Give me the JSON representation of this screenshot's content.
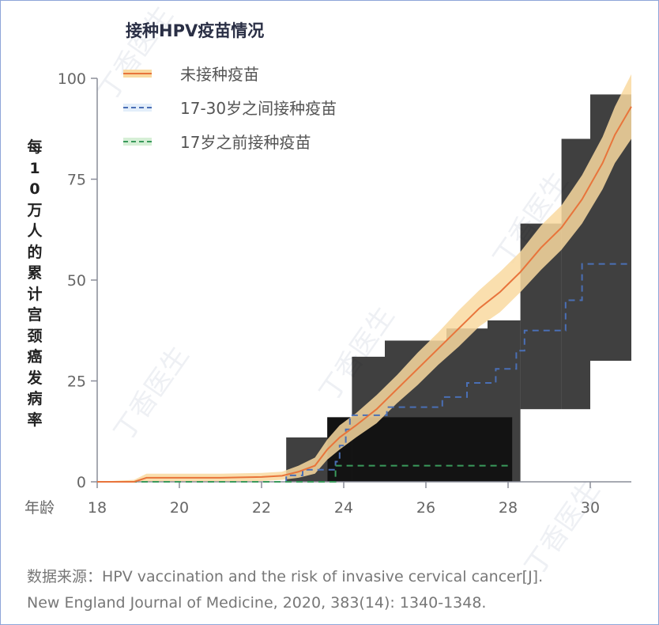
{
  "watermark": "丁香医生",
  "source": {
    "line1": "数据来源：HPV vaccination and the risk of invasive cervical cancer[J].",
    "line2": "New England Journal of Medicine, 2020, 383(14): 1340-1348."
  },
  "chart_data": {
    "type": "line",
    "title": "接种HPV疫苗情况",
    "ylabel": "每10万人的累计宫颈癌发病率",
    "xlabel": "年龄",
    "xlim": [
      18,
      31
    ],
    "ylim": [
      0,
      100
    ],
    "xticks": [
      18,
      20,
      22,
      24,
      26,
      28,
      30
    ],
    "yticks": [
      0,
      25,
      50,
      75,
      100
    ],
    "legend_position": "top-left",
    "colors": {
      "unvaccinated": "#e8743b",
      "band_unvaccinated": "#f9d9a0",
      "vacc_17_30": "#4a6fb5",
      "band_17_30": "#d6e8f8",
      "vacc_before_17": "#3a9a5c",
      "band_before_17": "#cfeccf"
    },
    "series": [
      {
        "name": "未接种疫苗",
        "style": "solid",
        "key": "unvaccinated",
        "x": [
          18,
          18.9,
          19.2,
          20,
          21,
          22,
          22.5,
          22.9,
          23.3,
          23.6,
          23.9,
          24.3,
          24.8,
          25.3,
          25.8,
          26.3,
          26.8,
          27.3,
          27.8,
          28.3,
          28.8,
          29.3,
          29.8,
          30.3,
          30.6,
          31
        ],
        "y": [
          0,
          0,
          1,
          1,
          1,
          1.2,
          1.5,
          2.5,
          4,
          8,
          11,
          14,
          18,
          23,
          28,
          33,
          38,
          43,
          47,
          52,
          58,
          63,
          70,
          79,
          86,
          93
        ],
        "band_halfwidth": [
          0,
          0.5,
          1,
          1,
          1,
          1,
          1,
          1.5,
          2,
          2.5,
          3,
          3,
          3.5,
          3.5,
          4,
          4,
          4.5,
          4.5,
          5,
          5,
          5.5,
          5.5,
          6,
          6.5,
          7,
          8
        ]
      },
      {
        "name": "17-30岁之间接种疫苗",
        "style": "dashed",
        "key": "vacc_17_30",
        "step": true,
        "x": [
          18,
          22.6,
          23.0,
          23.8,
          23.9,
          24.05,
          24.15,
          25.05,
          26.4,
          27.0,
          27.7,
          28.2,
          28.4,
          29.4,
          29.8,
          31
        ],
        "y": [
          0,
          1.6,
          3,
          5,
          9,
          13,
          16.5,
          18.5,
          21,
          24.5,
          28,
          32.5,
          37.5,
          45,
          54,
          54
        ],
        "band": [
          [
            22.6,
            23.6,
            0,
            11
          ],
          [
            23.6,
            24.2,
            0,
            16
          ],
          [
            24.2,
            25.0,
            0,
            31
          ],
          [
            25.0,
            26.5,
            0,
            35
          ],
          [
            26.5,
            27.5,
            0,
            38
          ],
          [
            27.5,
            28.3,
            0,
            40
          ],
          [
            28.3,
            29.3,
            18,
            64
          ],
          [
            29.3,
            30.0,
            18,
            85
          ],
          [
            30.0,
            31,
            30,
            96
          ]
        ]
      },
      {
        "name": "17岁之前接种疫苗",
        "style": "dashed",
        "key": "vacc_before_17",
        "step": true,
        "x": [
          18,
          23.7,
          23.8,
          28.1
        ],
        "y": [
          0,
          0,
          4,
          4
        ],
        "band": [
          [
            23.6,
            28.1,
            0,
            16
          ]
        ]
      }
    ]
  }
}
